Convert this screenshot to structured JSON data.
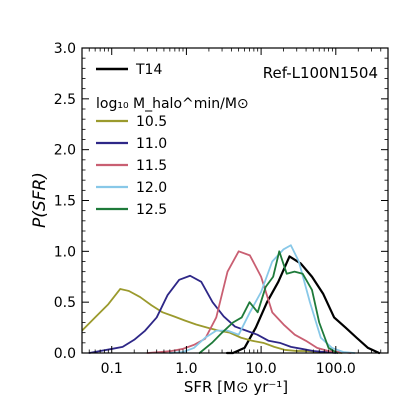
{
  "chart_data": {
    "type": "line",
    "title": "",
    "xlabel": "SFR [M⊙ yr⁻¹]",
    "ylabel": "P(SFR)",
    "xscale": "log",
    "xlim": [
      0.04,
      500
    ],
    "ylim": [
      0,
      3.0
    ],
    "grid": false,
    "legend_position": "top-left",
    "annotation": "Ref-L100N1504",
    "legend_header": "log₁₀ M_halo^min/M⊙",
    "xticks": [
      {
        "value": 0.1,
        "label": "0.1"
      },
      {
        "value": 1,
        "label": "1.0"
      },
      {
        "value": 10,
        "label": "10.0"
      },
      {
        "value": 100,
        "label": "100.0"
      }
    ],
    "yticks": [
      {
        "value": 0.0,
        "label": "0.0"
      },
      {
        "value": 0.5,
        "label": "0.5"
      },
      {
        "value": 1.0,
        "label": "1.0"
      },
      {
        "value": 1.5,
        "label": "1.5"
      },
      {
        "value": 2.0,
        "label": "2.0"
      },
      {
        "value": 2.5,
        "label": "2.5"
      },
      {
        "value": 3.0,
        "label": "3.0"
      }
    ],
    "series": [
      {
        "name": "T14",
        "color": "#000000",
        "width": 2.2,
        "x": [
          3.5,
          4.2,
          6.0,
          8.5,
          12.0,
          17.0,
          24.0,
          34.0,
          48.0,
          68.0,
          95.0,
          135.0,
          190.0,
          270.0,
          380.0
        ],
        "y": [
          0.0,
          0.0,
          0.05,
          0.25,
          0.5,
          0.7,
          0.95,
          0.88,
          0.75,
          0.58,
          0.35,
          0.25,
          0.15,
          0.05,
          0.0
        ]
      },
      {
        "name": "10.5",
        "color": "#9b9a2d",
        "width": 1.8,
        "x": [
          0.04,
          0.06,
          0.09,
          0.13,
          0.17,
          0.24,
          0.34,
          0.48,
          0.68,
          0.95,
          1.35,
          1.9,
          2.7,
          3.8,
          5.4,
          7.6,
          10.7,
          15.0,
          21.0,
          30.0,
          42.0,
          60.0,
          85.0,
          120.0
        ],
        "y": [
          0.22,
          0.35,
          0.48,
          0.63,
          0.61,
          0.55,
          0.47,
          0.4,
          0.36,
          0.32,
          0.28,
          0.25,
          0.22,
          0.2,
          0.15,
          0.12,
          0.1,
          0.06,
          0.03,
          0.02,
          0.02,
          0.01,
          0.01,
          0.0
        ]
      },
      {
        "name": "11.0",
        "color": "#2e2787",
        "width": 1.8,
        "x": [
          0.05,
          0.07,
          0.1,
          0.14,
          0.2,
          0.28,
          0.4,
          0.56,
          0.8,
          1.12,
          1.58,
          2.24,
          3.16,
          4.47,
          6.31,
          8.91,
          12.6,
          17.8,
          25.1,
          35.5,
          50.1,
          70.8,
          100.0
        ],
        "y": [
          0.0,
          0.02,
          0.04,
          0.06,
          0.13,
          0.22,
          0.35,
          0.57,
          0.72,
          0.76,
          0.7,
          0.5,
          0.36,
          0.26,
          0.22,
          0.18,
          0.12,
          0.1,
          0.06,
          0.04,
          0.02,
          0.01,
          0.0
        ]
      },
      {
        "name": "11.5",
        "color": "#c95f72",
        "width": 1.8,
        "x": [
          0.3,
          0.45,
          0.63,
          0.89,
          1.26,
          1.78,
          2.51,
          3.55,
          5.01,
          7.08,
          10.0,
          14.1,
          20.0,
          28.2,
          39.8,
          56.2,
          79.4,
          112.0,
          158.0
        ],
        "y": [
          0.0,
          0.01,
          0.02,
          0.04,
          0.08,
          0.14,
          0.35,
          0.8,
          1.0,
          0.96,
          0.75,
          0.4,
          0.28,
          0.18,
          0.12,
          0.05,
          0.02,
          0.01,
          0.0
        ]
      },
      {
        "name": "12.0",
        "color": "#88c8e8",
        "width": 1.8,
        "x": [
          0.6,
          0.9,
          1.26,
          1.78,
          2.51,
          3.55,
          5.01,
          7.08,
          10.0,
          14.1,
          20.0,
          25.0,
          32.0,
          45.0,
          63.0,
          89.0,
          126.0,
          178.0
        ],
        "y": [
          0.0,
          0.01,
          0.05,
          0.15,
          0.22,
          0.22,
          0.18,
          0.4,
          0.6,
          0.9,
          1.02,
          1.06,
          0.9,
          0.5,
          0.15,
          0.05,
          0.01,
          0.0
        ]
      },
      {
        "name": "12.5",
        "color": "#1e7a3a",
        "width": 1.8,
        "x": [
          1.5,
          2.2,
          3.0,
          4.2,
          5.5,
          7.0,
          9.0,
          11.5,
          14.5,
          17.5,
          22.0,
          28.0,
          36.0,
          48.0,
          60.0,
          80.0,
          105.0
        ],
        "y": [
          0.0,
          0.1,
          0.2,
          0.3,
          0.35,
          0.5,
          0.4,
          0.65,
          0.75,
          1.0,
          0.78,
          0.8,
          0.78,
          0.62,
          0.3,
          0.05,
          0.0
        ]
      }
    ]
  }
}
